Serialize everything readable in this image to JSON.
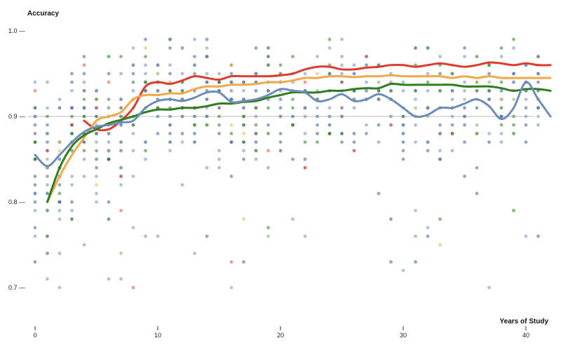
{
  "chart_data": {
    "type": "scatter",
    "ylabel": "Accuracy",
    "xlabel": "Years of Study",
    "xlim": [
      0,
      42
    ],
    "ylim": [
      0.65,
      1.02
    ],
    "x_ticks": [
      {
        "value": 0,
        "label": "0"
      },
      {
        "value": 10,
        "label": "10"
      },
      {
        "value": 20,
        "label": "20"
      },
      {
        "value": 30,
        "label": "30"
      },
      {
        "value": 40,
        "label": "40"
      }
    ],
    "y_ticks": [
      {
        "value": 0.7,
        "label": "0.7 —"
      },
      {
        "value": 0.8,
        "label": "0.8 —"
      },
      {
        "value": 0.9,
        "label": "0.9 —"
      },
      {
        "value": 1.0,
        "label": "1.0 —"
      }
    ],
    "reference_line": 0.9,
    "grid": false,
    "legend": "none",
    "colors": {
      "red": "#dc3b2e",
      "orange": "#f0a848",
      "green": "#2e7d1e",
      "blue": "#6e8cb8",
      "axis": "#333333",
      "reference": "#bbbbbb"
    },
    "series": [
      {
        "color": "red",
        "points": [
          [
            4,
            0.895
          ],
          [
            5,
            0.885
          ],
          [
            6,
            0.885
          ],
          [
            7,
            0.895
          ],
          [
            8,
            0.91
          ],
          [
            9,
            0.935
          ],
          [
            10,
            0.94
          ],
          [
            11,
            0.938
          ],
          [
            12,
            0.942
          ],
          [
            13,
            0.947
          ],
          [
            14,
            0.945
          ],
          [
            15,
            0.943
          ],
          [
            16,
            0.947
          ],
          [
            17,
            0.947
          ],
          [
            18,
            0.947
          ],
          [
            19,
            0.947
          ],
          [
            20,
            0.948
          ],
          [
            21,
            0.95
          ],
          [
            22,
            0.955
          ],
          [
            23,
            0.958
          ],
          [
            24,
            0.958
          ],
          [
            25,
            0.955
          ],
          [
            26,
            0.955
          ],
          [
            27,
            0.957
          ],
          [
            28,
            0.958
          ],
          [
            29,
            0.96
          ],
          [
            30,
            0.96
          ],
          [
            31,
            0.958
          ],
          [
            32,
            0.96
          ],
          [
            33,
            0.962
          ],
          [
            34,
            0.96
          ],
          [
            35,
            0.958
          ],
          [
            36,
            0.96
          ],
          [
            37,
            0.963
          ],
          [
            38,
            0.962
          ],
          [
            39,
            0.96
          ],
          [
            40,
            0.962
          ],
          [
            41,
            0.96
          ],
          [
            42,
            0.96
          ]
        ]
      },
      {
        "color": "orange",
        "points": [
          [
            1,
            0.8
          ],
          [
            2,
            0.83
          ],
          [
            3,
            0.855
          ],
          [
            4,
            0.875
          ],
          [
            5,
            0.895
          ],
          [
            6,
            0.9
          ],
          [
            7,
            0.905
          ],
          [
            8,
            0.92
          ],
          [
            9,
            0.925
          ],
          [
            10,
            0.925
          ],
          [
            11,
            0.927
          ],
          [
            12,
            0.927
          ],
          [
            13,
            0.932
          ],
          [
            14,
            0.935
          ],
          [
            15,
            0.935
          ],
          [
            16,
            0.937
          ],
          [
            17,
            0.937
          ],
          [
            18,
            0.938
          ],
          [
            19,
            0.94
          ],
          [
            20,
            0.94
          ],
          [
            21,
            0.942
          ],
          [
            22,
            0.945
          ],
          [
            23,
            0.945
          ],
          [
            24,
            0.947
          ],
          [
            25,
            0.947
          ],
          [
            26,
            0.946
          ],
          [
            27,
            0.947
          ],
          [
            28,
            0.947
          ],
          [
            29,
            0.948
          ],
          [
            30,
            0.947
          ],
          [
            31,
            0.947
          ],
          [
            32,
            0.947
          ],
          [
            33,
            0.947
          ],
          [
            34,
            0.945
          ],
          [
            35,
            0.947
          ],
          [
            36,
            0.945
          ],
          [
            37,
            0.947
          ],
          [
            38,
            0.945
          ],
          [
            39,
            0.945
          ],
          [
            40,
            0.945
          ],
          [
            41,
            0.945
          ],
          [
            42,
            0.945
          ]
        ]
      },
      {
        "color": "green",
        "points": [
          [
            1,
            0.8
          ],
          [
            2,
            0.84
          ],
          [
            3,
            0.865
          ],
          [
            4,
            0.878
          ],
          [
            5,
            0.885
          ],
          [
            6,
            0.892
          ],
          [
            7,
            0.896
          ],
          [
            8,
            0.9
          ],
          [
            9,
            0.905
          ],
          [
            10,
            0.908
          ],
          [
            11,
            0.908
          ],
          [
            12,
            0.91
          ],
          [
            13,
            0.91
          ],
          [
            14,
            0.912
          ],
          [
            15,
            0.915
          ],
          [
            16,
            0.915
          ],
          [
            17,
            0.917
          ],
          [
            18,
            0.918
          ],
          [
            19,
            0.922
          ],
          [
            20,
            0.925
          ],
          [
            21,
            0.928
          ],
          [
            22,
            0.928
          ],
          [
            23,
            0.928
          ],
          [
            24,
            0.93
          ],
          [
            25,
            0.93
          ],
          [
            26,
            0.932
          ],
          [
            27,
            0.933
          ],
          [
            28,
            0.933
          ],
          [
            29,
            0.938
          ],
          [
            30,
            0.937
          ],
          [
            31,
            0.937
          ],
          [
            32,
            0.937
          ],
          [
            33,
            0.937
          ],
          [
            34,
            0.937
          ],
          [
            35,
            0.935
          ],
          [
            36,
            0.935
          ],
          [
            37,
            0.935
          ],
          [
            38,
            0.933
          ],
          [
            39,
            0.93
          ],
          [
            40,
            0.932
          ],
          [
            41,
            0.932
          ],
          [
            42,
            0.93
          ]
        ]
      },
      {
        "color": "blue",
        "points": [
          [
            0,
            0.855
          ],
          [
            1,
            0.842
          ],
          [
            2,
            0.855
          ],
          [
            3,
            0.87
          ],
          [
            4,
            0.882
          ],
          [
            5,
            0.888
          ],
          [
            6,
            0.89
          ],
          [
            7,
            0.893
          ],
          [
            8,
            0.895
          ],
          [
            9,
            0.91
          ],
          [
            10,
            0.918
          ],
          [
            11,
            0.92
          ],
          [
            12,
            0.918
          ],
          [
            13,
            0.922
          ],
          [
            14,
            0.928
          ],
          [
            15,
            0.928
          ],
          [
            16,
            0.917
          ],
          [
            17,
            0.918
          ],
          [
            18,
            0.92
          ],
          [
            19,
            0.925
          ],
          [
            20,
            0.932
          ],
          [
            21,
            0.93
          ],
          [
            22,
            0.928
          ],
          [
            23,
            0.918
          ],
          [
            24,
            0.92
          ],
          [
            25,
            0.926
          ],
          [
            26,
            0.918
          ],
          [
            27,
            0.92
          ],
          [
            28,
            0.926
          ],
          [
            29,
            0.92
          ],
          [
            30,
            0.91
          ],
          [
            31,
            0.9
          ],
          [
            32,
            0.902
          ],
          [
            33,
            0.91
          ],
          [
            34,
            0.91
          ],
          [
            35,
            0.915
          ],
          [
            36,
            0.92
          ],
          [
            37,
            0.912
          ],
          [
            38,
            0.897
          ],
          [
            39,
            0.91
          ],
          [
            40,
            0.94
          ],
          [
            41,
            0.92
          ],
          [
            42,
            0.9
          ]
        ]
      }
    ]
  }
}
